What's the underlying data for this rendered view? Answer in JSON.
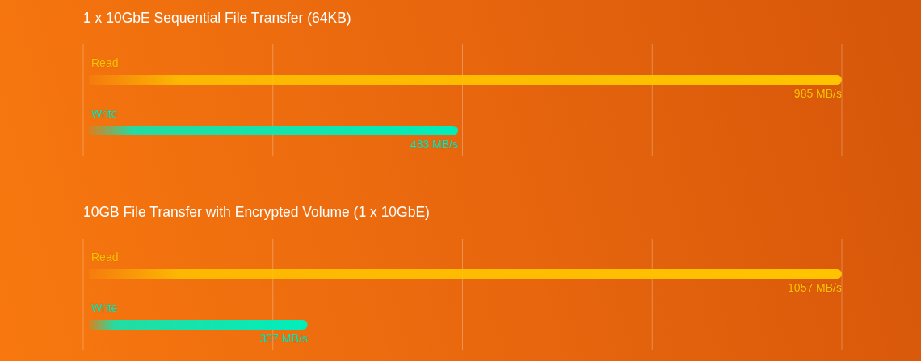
{
  "chart_data": [
    {
      "type": "bar",
      "orientation": "horizontal",
      "title": "1 x 10GbE Sequential File Transfer (64KB)",
      "categories": [
        "Read",
        "Write"
      ],
      "values": [
        985,
        483
      ],
      "colors": [
        "#ffc400",
        "#00eebb"
      ],
      "value_labels": [
        "985 MB/s",
        "483 MB/s"
      ],
      "grid": "x"
    },
    {
      "type": "bar",
      "orientation": "horizontal",
      "title": "10GB File Transfer with Encrypted Volume (1 x 10GbE)",
      "categories": [
        "Read",
        "Write"
      ],
      "values": [
        1057,
        307
      ],
      "colors": [
        "#ffc400",
        "#00eebb"
      ],
      "value_labels": [
        "1057 MB/s",
        "307 MB/s"
      ],
      "grid": "x"
    }
  ]
}
